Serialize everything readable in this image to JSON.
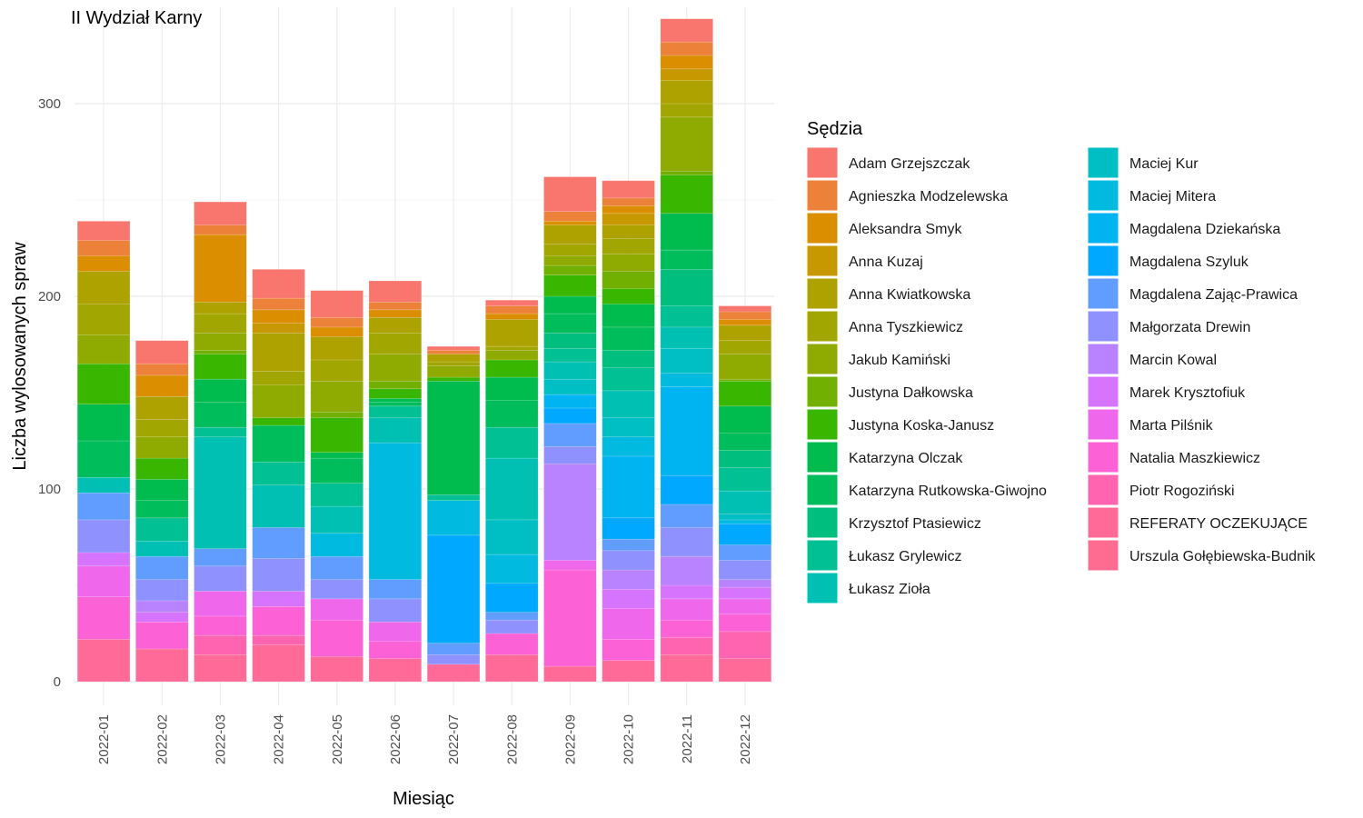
{
  "chart_data": {
    "type": "bar",
    "stacked": true,
    "title": "II Wydział Karny",
    "xlabel": "Miesiąc",
    "ylabel": "Liczba wylosowanych spraw",
    "ylim": [
      -12,
      340
    ],
    "yticks": [
      0,
      100,
      200,
      300
    ],
    "grid": true,
    "legend_title": "Sędzia",
    "legend_position": "right",
    "categories": [
      "2022-01",
      "2022-02",
      "2022-03",
      "2022-04",
      "2022-05",
      "2022-06",
      "2022-07",
      "2022-08",
      "2022-09",
      "2022-10",
      "2022-11",
      "2022-12"
    ],
    "series": [
      {
        "name": "Adam Grzejszczak",
        "color": "#F8766D",
        "values": [
          10,
          12,
          12,
          15,
          14,
          11,
          2,
          3,
          18,
          9,
          12,
          3
        ]
      },
      {
        "name": "Agnieszka Modzelewska",
        "color": "#EC8239",
        "values": [
          8,
          6,
          5,
          6,
          5,
          4,
          2,
          4,
          5,
          4,
          7,
          4
        ]
      },
      {
        "name": "Aleksandra Smyk",
        "color": "#DB8E00",
        "values": [
          8,
          11,
          35,
          7,
          5,
          4,
          0,
          3,
          2,
          4,
          7,
          3
        ]
      },
      {
        "name": "Anna Kuzaj",
        "color": "#C79800",
        "values": [
          0,
          0,
          0,
          5,
          0,
          0,
          0,
          0,
          0,
          6,
          6,
          0
        ]
      },
      {
        "name": "Anna Kwiatkowska",
        "color": "#AEA200",
        "values": [
          17,
          12,
          6,
          20,
          12,
          8,
          4,
          14,
          10,
          7,
          12,
          8
        ]
      },
      {
        "name": "Anna Tyszkiewicz",
        "color": "#A2A600",
        "values": [
          16,
          9,
          10,
          7,
          11,
          11,
          2,
          2,
          6,
          8,
          7,
          7
        ]
      },
      {
        "name": "Jakub Kamiński",
        "color": "#8FAA00",
        "values": [
          15,
          11,
          9,
          17,
          16,
          14,
          6,
          5,
          5,
          9,
          28,
          13
        ]
      },
      {
        "name": "Justyna Dałkowska",
        "color": "#72B000",
        "values": [
          0,
          0,
          2,
          0,
          3,
          4,
          0,
          0,
          5,
          9,
          2,
          1
        ]
      },
      {
        "name": "Justyna Koska-Janusz",
        "color": "#39B600",
        "values": [
          21,
          11,
          13,
          4,
          18,
          5,
          2,
          9,
          11,
          8,
          20,
          13
        ]
      },
      {
        "name": "Katarzyna Olczak",
        "color": "#00BB4E",
        "values": [
          19,
          11,
          12,
          0,
          3,
          2,
          59,
          12,
          9,
          12,
          19,
          14
        ]
      },
      {
        "name": "Katarzyna Rutkowska-Giwojno",
        "color": "#00BD5C",
        "values": [
          19,
          9,
          13,
          19,
          13,
          2,
          0,
          14,
          10,
          12,
          10,
          9
        ]
      },
      {
        "name": "Krzysztof Ptasiewicz",
        "color": "#00BE7D",
        "values": [
          0,
          0,
          0,
          0,
          0,
          0,
          0,
          0,
          8,
          9,
          19,
          9
        ]
      },
      {
        "name": "Łukasz Grylewicz",
        "color": "#00C094",
        "values": [
          0,
          12,
          5,
          12,
          12,
          6,
          3,
          16,
          7,
          12,
          11,
          12
        ]
      },
      {
        "name": "Łukasz Zioła",
        "color": "#00C0B4",
        "values": [
          8,
          8,
          58,
          22,
          14,
          13,
          0,
          32,
          9,
          14,
          11,
          12
        ]
      },
      {
        "name": "Maciej Kur",
        "color": "#00BFC4",
        "values": [
          0,
          0,
          0,
          0,
          0,
          0,
          0,
          18,
          8,
          10,
          13,
          3
        ]
      },
      {
        "name": "Maciej Mitera",
        "color": "#00BAE0",
        "values": [
          0,
          0,
          0,
          0,
          12,
          71,
          18,
          15,
          0,
          10,
          7,
          2
        ]
      },
      {
        "name": "Magdalena Dziekańska",
        "color": "#00B3F1",
        "values": [
          0,
          0,
          0,
          0,
          0,
          0,
          0,
          0,
          7,
          32,
          46,
          0
        ]
      },
      {
        "name": "Magdalena Szyluk",
        "color": "#00A9FF",
        "values": [
          0,
          0,
          0,
          0,
          0,
          0,
          56,
          15,
          8,
          11,
          15,
          11
        ]
      },
      {
        "name": "Magdalena Zając-Prawica",
        "color": "#619CFF",
        "values": [
          14,
          12,
          9,
          16,
          12,
          10,
          6,
          4,
          12,
          6,
          12,
          8
        ]
      },
      {
        "name": "Małgorzata Drewin",
        "color": "#8F91FF",
        "values": [
          17,
          11,
          13,
          17,
          10,
          12,
          5,
          7,
          9,
          10,
          15,
          10
        ]
      },
      {
        "name": "Marcin Kowal",
        "color": "#B983FF",
        "values": [
          0,
          6,
          0,
          0,
          0,
          0,
          0,
          0,
          50,
          10,
          15,
          4
        ]
      },
      {
        "name": "Marek Krysztofiuk",
        "color": "#D774FD",
        "values": [
          7,
          5,
          0,
          8,
          0,
          0,
          0,
          0,
          0,
          10,
          7,
          6
        ]
      },
      {
        "name": "Marta Pilśnik",
        "color": "#EF67EB",
        "values": [
          16,
          0,
          13,
          0,
          11,
          10,
          0,
          0,
          5,
          16,
          11,
          8
        ]
      },
      {
        "name": "Natalia Maszkiewicz",
        "color": "#FC61D5",
        "values": [
          22,
          14,
          10,
          15,
          19,
          9,
          0,
          11,
          50,
          11,
          9,
          9
        ]
      },
      {
        "name": "Piotr Rogoziński",
        "color": "#FF64B0",
        "values": [
          0,
          0,
          10,
          5,
          0,
          0,
          0,
          0,
          0,
          0,
          9,
          14
        ]
      },
      {
        "name": "REFERATY OCZEKUJĄCE",
        "color": "#FF6A98",
        "values": [
          22,
          17,
          14,
          19,
          13,
          12,
          9,
          14,
          8,
          11,
          14,
          12
        ]
      },
      {
        "name": "Urszula Gołębiewska-Budnik",
        "color": "#FF6C91",
        "values": [
          0,
          0,
          0,
          0,
          0,
          0,
          0,
          0,
          0,
          0,
          0,
          0
        ]
      }
    ]
  }
}
